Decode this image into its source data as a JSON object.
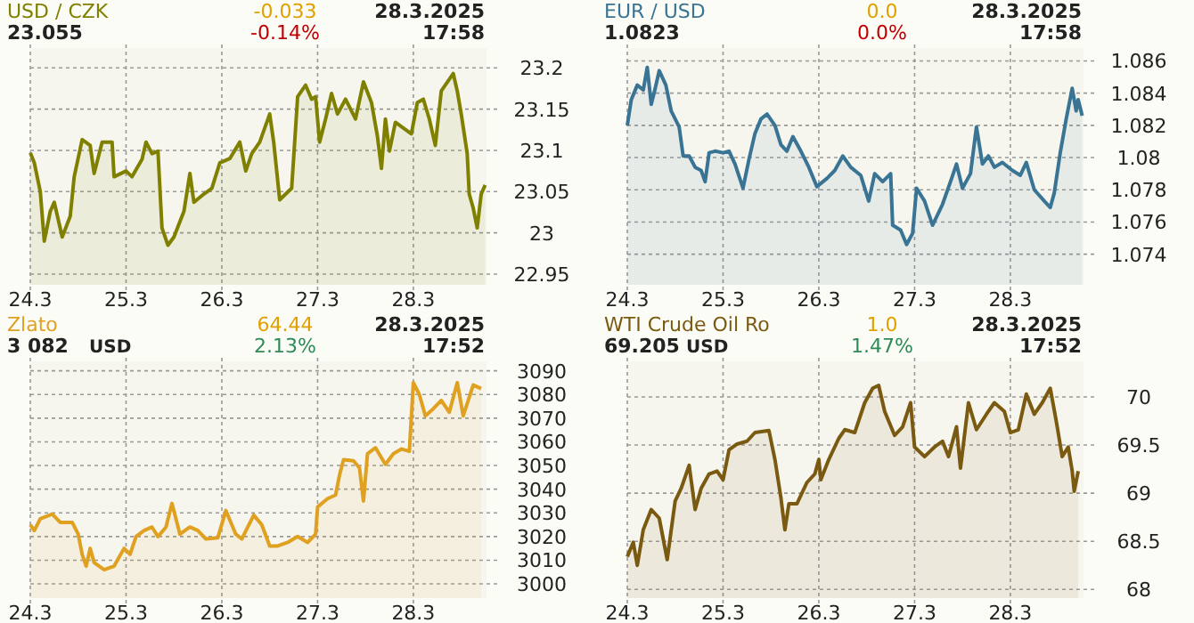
{
  "chart_data": [
    {
      "type": "area",
      "title": "USD / CZK",
      "annotations": [
        "23.055",
        "-0.033",
        "-0.14%",
        "28.3.2025",
        "17:58"
      ],
      "x": [
        "2025-03-24T00:00",
        "2025-03-24T01:00",
        "2025-03-24T02:30",
        "2025-03-24T03:30",
        "2025-03-24T05:00",
        "2025-03-24T06:00",
        "2025-03-24T08:00",
        "2025-03-24T10:00",
        "2025-03-24T11:00",
        "2025-03-24T13:00",
        "2025-03-24T15:00",
        "2025-03-24T16:00",
        "2025-03-24T18:00",
        "2025-03-24T20:30",
        "2025-03-24T21:00",
        "2025-03-25T00:00",
        "2025-03-25T01:30",
        "2025-03-25T04:00",
        "2025-03-25T05:00",
        "2025-03-25T06:30",
        "2025-03-25T08:00",
        "2025-03-25T09:00",
        "2025-03-25T10:30",
        "2025-03-25T12:00",
        "2025-03-25T14:30",
        "2025-03-25T16:00",
        "2025-03-25T17:00",
        "2025-03-25T19:30",
        "2025-03-25T21:30",
        "2025-03-25T23:30",
        "2025-03-26T02:00",
        "2025-03-26T04:30",
        "2025-03-26T06:00",
        "2025-03-26T07:30",
        "2025-03-26T09:30",
        "2025-03-26T12:00",
        "2025-03-26T13:00",
        "2025-03-26T14:30",
        "2025-03-26T16:00",
        "2025-03-26T17:30",
        "2025-03-26T19:00",
        "2025-03-26T21:00",
        "2025-03-26T22:30",
        "2025-03-26T23:30",
        "2025-03-27T00:30",
        "2025-03-27T02:00",
        "2025-03-27T03:30",
        "2025-03-27T05:00",
        "2025-03-27T07:00",
        "2025-03-27T09:30",
        "2025-03-27T11:30",
        "2025-03-27T13:30",
        "2025-03-27T15:00",
        "2025-03-27T16:00",
        "2025-03-27T17:00",
        "2025-03-27T18:00",
        "2025-03-27T19:30",
        "2025-03-27T21:30",
        "2025-03-27T23:30",
        "2025-03-28T01:00",
        "2025-03-28T02:30",
        "2025-03-28T04:00",
        "2025-03-28T05:30",
        "2025-03-28T07:00",
        "2025-03-28T09:00",
        "2025-03-28T10:00",
        "2025-03-28T11:00",
        "2025-03-28T12:00",
        "2025-03-28T13:30",
        "2025-03-28T14:00",
        "2025-03-28T15:00",
        "2025-03-28T16:00",
        "2025-03-28T17:00",
        "2025-03-28T18:00"
      ],
      "series": [
        {
          "color": "#808000",
          "values": [
            23.097,
            23.085,
            23.05,
            22.99,
            23.026,
            23.037,
            22.995,
            23.02,
            23.068,
            23.113,
            23.106,
            23.072,
            23.11,
            23.11,
            23.068,
            23.075,
            23.068,
            23.089,
            23.11,
            23.096,
            23.099,
            23.006,
            22.985,
            22.995,
            23.026,
            23.072,
            23.037,
            23.047,
            23.054,
            23.085,
            23.09,
            23.11,
            23.075,
            23.096,
            23.11,
            23.144,
            23.11,
            23.04,
            23.047,
            23.054,
            23.165,
            23.179,
            23.162,
            23.165,
            23.11,
            23.138,
            23.169,
            23.144,
            23.162,
            23.138,
            23.183,
            23.158,
            23.117,
            23.078,
            23.138,
            23.099,
            23.134,
            23.127,
            23.12,
            23.158,
            23.162,
            23.138,
            23.106,
            23.172,
            23.186,
            23.193,
            23.172,
            23.144,
            23.096,
            23.047,
            23.03,
            23.006,
            23.047,
            23.058
          ]
        }
      ],
      "xlim": [
        "2025-03-24T00:00",
        "2025-03-28T18:20"
      ],
      "xticks": [
        {
          "value": "2025-03-24",
          "label": "24.3"
        },
        {
          "value": "2025-03-25",
          "label": "25.3"
        },
        {
          "value": "2025-03-26",
          "label": "26.3"
        },
        {
          "value": "2025-03-27",
          "label": "27.3"
        },
        {
          "value": "2025-03-28",
          "label": "28.3"
        }
      ],
      "ylim": [
        22.937,
        23.224
      ],
      "yticks": [
        22.95,
        23,
        23.05,
        23.1,
        23.15,
        23.2
      ],
      "grid": true
    },
    {
      "type": "area",
      "title": "EUR / USD",
      "annotations": [
        "1.0823",
        "0.0",
        "0.0%",
        "28.3.2025",
        "17:58"
      ],
      "x": [
        "2025-03-24T00:00",
        "2025-03-24T01:00",
        "2025-03-24T02:30",
        "2025-03-24T04:00",
        "2025-03-24T05:00",
        "2025-03-24T06:00",
        "2025-03-24T07:00",
        "2025-03-24T08:00",
        "2025-03-24T09:40",
        "2025-03-24T11:00",
        "2025-03-24T13:00",
        "2025-03-24T14:00",
        "2025-03-24T15:30",
        "2025-03-24T17:00",
        "2025-03-24T18:30",
        "2025-03-24T19:30",
        "2025-03-24T20:30",
        "2025-03-24T22:00",
        "2025-03-25T00:00",
        "2025-03-25T01:30",
        "2025-03-25T03:00",
        "2025-03-25T05:00",
        "2025-03-25T06:30",
        "2025-03-25T08:00",
        "2025-03-25T09:30",
        "2025-03-25T11:00",
        "2025-03-25T13:00",
        "2025-03-25T14:30",
        "2025-03-25T16:00",
        "2025-03-25T17:30",
        "2025-03-25T19:30",
        "2025-03-25T21:30",
        "2025-03-25T23:30",
        "2025-03-26T02:00",
        "2025-03-26T04:00",
        "2025-03-26T06:00",
        "2025-03-26T08:00",
        "2025-03-26T10:30",
        "2025-03-26T12:30",
        "2025-03-26T14:00",
        "2025-03-26T16:00",
        "2025-03-26T18:00",
        "2025-03-26T18:30",
        "2025-03-26T20:30",
        "2025-03-26T22:00",
        "2025-03-26T23:30",
        "2025-03-27T00:30",
        "2025-03-27T02:30",
        "2025-03-27T04:30",
        "2025-03-27T07:00",
        "2025-03-27T09:00",
        "2025-03-27T10:30",
        "2025-03-27T12:00",
        "2025-03-27T14:00",
        "2025-03-27T15:30",
        "2025-03-27T17:00",
        "2025-03-27T18:30",
        "2025-03-27T20:00",
        "2025-03-27T22:00",
        "2025-03-28T00:30",
        "2025-03-28T02:30",
        "2025-03-28T04:00",
        "2025-03-28T06:00",
        "2025-03-28T08:30",
        "2025-03-28T10:00",
        "2025-03-28T11:00",
        "2025-03-28T12:30",
        "2025-03-28T14:00",
        "2025-03-28T15:30",
        "2025-03-28T16:30",
        "2025-03-28T17:00",
        "2025-03-28T18:00"
      ],
      "series": [
        {
          "color": "#3a7494",
          "values": [
            1.082,
            1.0836,
            1.0845,
            1.0842,
            1.0856,
            1.0833,
            1.0843,
            1.0854,
            1.0845,
            1.0829,
            1.0819,
            1.0801,
            1.0801,
            1.0794,
            1.0792,
            1.0785,
            1.0803,
            1.0804,
            1.0803,
            1.0804,
            1.0796,
            1.0781,
            1.0799,
            1.0815,
            1.0824,
            1.0827,
            1.082,
            1.0808,
            1.0804,
            1.0813,
            1.0804,
            1.0794,
            1.0782,
            1.0787,
            1.0792,
            1.0801,
            1.0794,
            1.0789,
            1.0773,
            1.079,
            1.0785,
            1.079,
            1.0758,
            1.0755,
            1.0746,
            1.0753,
            1.0781,
            1.0773,
            1.0758,
            1.0771,
            1.0785,
            1.0796,
            1.0781,
            1.079,
            1.0819,
            1.0796,
            1.0801,
            1.0794,
            1.0797,
            1.0792,
            1.0789,
            1.0797,
            1.078,
            1.0773,
            1.0769,
            1.0778,
            1.0803,
            1.0824,
            1.0843,
            1.0829,
            1.0836,
            1.0826
          ]
        }
      ],
      "xlim": [
        "2025-03-24T00:00",
        "2025-03-28T18:20"
      ],
      "xticks": [
        {
          "value": "2025-03-24",
          "label": "24.3"
        },
        {
          "value": "2025-03-25",
          "label": "25.3"
        },
        {
          "value": "2025-03-26",
          "label": "26.3"
        },
        {
          "value": "2025-03-27",
          "label": "27.3"
        },
        {
          "value": "2025-03-28",
          "label": "28.3"
        }
      ],
      "ylim": [
        1.0721,
        1.0868
      ],
      "yticks": [
        1.074,
        1.076,
        1.078,
        1.08,
        1.082,
        1.084,
        1.086
      ],
      "grid": true
    },
    {
      "type": "area",
      "title": "Zlato",
      "annotations": [
        "3 082",
        "USD",
        "64.44",
        "2.13%",
        "28.3.2025",
        "17:52"
      ],
      "x": [
        "2025-03-24T00:00",
        "2025-03-24T01:00",
        "2025-03-24T02:30",
        "2025-03-24T05:30",
        "2025-03-24T07:30",
        "2025-03-24T10:30",
        "2025-03-24T12:00",
        "2025-03-24T13:00",
        "2025-03-24T14:00",
        "2025-03-24T15:00",
        "2025-03-24T16:00",
        "2025-03-24T18:30",
        "2025-03-24T21:00",
        "2025-03-24T23:30",
        "2025-03-25T01:00",
        "2025-03-25T02:30",
        "2025-03-25T04:30",
        "2025-03-25T06:30",
        "2025-03-25T08:00",
        "2025-03-25T10:00",
        "2025-03-25T11:30",
        "2025-03-25T13:30",
        "2025-03-25T16:00",
        "2025-03-25T18:00",
        "2025-03-25T20:00",
        "2025-03-25T23:00",
        "2025-03-26T01:00",
        "2025-03-26T03:30",
        "2025-03-26T05:00",
        "2025-03-26T08:00",
        "2025-03-26T10:00",
        "2025-03-26T12:00",
        "2025-03-26T14:00",
        "2025-03-26T16:30",
        "2025-03-26T19:00",
        "2025-03-26T21:30",
        "2025-03-26T23:30",
        "2025-03-27T00:00",
        "2025-03-27T02:30",
        "2025-03-27T04:30",
        "2025-03-27T05:30",
        "2025-03-27T06:30",
        "2025-03-27T09:00",
        "2025-03-27T10:30",
        "2025-03-27T11:30",
        "2025-03-27T12:30",
        "2025-03-27T14:30",
        "2025-03-27T17:00",
        "2025-03-27T19:00",
        "2025-03-27T21:00",
        "2025-03-27T23:00",
        "2025-03-28T00:00",
        "2025-03-28T01:30",
        "2025-03-28T03:00",
        "2025-03-28T05:00",
        "2025-03-28T07:00",
        "2025-03-28T09:00",
        "2025-03-28T11:00",
        "2025-03-28T12:30",
        "2025-03-28T15:00",
        "2025-03-28T17:00"
      ],
      "series": [
        {
          "color": "#e0a020",
          "values": [
            3025,
            3022.5,
            3027.5,
            3029.5,
            3026,
            3026,
            3021,
            3012.5,
            3007.5,
            3015,
            3009,
            3006,
            3007.5,
            3015,
            3012.5,
            3020,
            3022.5,
            3024,
            3020,
            3024,
            3034,
            3021,
            3024,
            3022.5,
            3019,
            3019.5,
            3031,
            3021,
            3019,
            3029,
            3025,
            3016,
            3016,
            3017.5,
            3020,
            3017.5,
            3021,
            3032.5,
            3036,
            3037.5,
            3046,
            3052.5,
            3052,
            3049,
            3035,
            3055,
            3057.5,
            3050.5,
            3055,
            3057,
            3056,
            3085,
            3080,
            3071,
            3074,
            3077.5,
            3072.5,
            3085,
            3071,
            3084,
            3082.5
          ]
        }
      ],
      "xlim": [
        "2025-03-24T00:00",
        "2025-03-28T18:20"
      ],
      "xticks": [
        {
          "value": "2025-03-24",
          "label": "24.3"
        },
        {
          "value": "2025-03-25",
          "label": "25.3"
        },
        {
          "value": "2025-03-26",
          "label": "26.3"
        },
        {
          "value": "2025-03-27",
          "label": "27.3"
        },
        {
          "value": "2025-03-28",
          "label": "28.3"
        }
      ],
      "ylim": [
        2994,
        3094
      ],
      "yticks": [
        3000,
        3010,
        3020,
        3030,
        3040,
        3050,
        3060,
        3070,
        3080,
        3090
      ],
      "grid": true
    },
    {
      "type": "area",
      "title": "WTI Crude Oil Ro",
      "annotations": [
        "69.205",
        "USD",
        "1.0",
        "1.47%",
        "28.3.2025",
        "17:52"
      ],
      "x": [
        "2025-03-24T00:00",
        "2025-03-24T01:30",
        "2025-03-24T02:30",
        "2025-03-24T04:00",
        "2025-03-24T06:00",
        "2025-03-24T08:00",
        "2025-03-24T10:00",
        "2025-03-24T12:00",
        "2025-03-24T13:30",
        "2025-03-24T15:30",
        "2025-03-24T17:00",
        "2025-03-24T18:30",
        "2025-03-24T20:30",
        "2025-03-24T22:30",
        "2025-03-25T00:00",
        "2025-03-25T01:30",
        "2025-03-25T03:30",
        "2025-03-25T06:00",
        "2025-03-25T08:00",
        "2025-03-25T11:30",
        "2025-03-25T13:00",
        "2025-03-25T14:30",
        "2025-03-25T15:30",
        "2025-03-25T16:30",
        "2025-03-25T18:30",
        "2025-03-25T21:00",
        "2025-03-25T23:00",
        "2025-03-26T00:00",
        "2025-03-26T00:30",
        "2025-03-26T02:30",
        "2025-03-26T05:00",
        "2025-03-26T06:30",
        "2025-03-26T09:00",
        "2025-03-26T11:30",
        "2025-03-26T13:30",
        "2025-03-26T15:00",
        "2025-03-26T16:30",
        "2025-03-26T19:00",
        "2025-03-26T21:00",
        "2025-03-26T23:00",
        "2025-03-27T00:00",
        "2025-03-27T02:30",
        "2025-03-27T05:00",
        "2025-03-27T07:00",
        "2025-03-27T08:30",
        "2025-03-27T10:30",
        "2025-03-27T11:30",
        "2025-03-27T13:30",
        "2025-03-27T15:30",
        "2025-03-27T18:00",
        "2025-03-27T20:00",
        "2025-03-27T22:30",
        "2025-03-28T00:00",
        "2025-03-28T02:00",
        "2025-03-28T04:00",
        "2025-03-28T06:00",
        "2025-03-28T08:00",
        "2025-03-28T10:00",
        "2025-03-28T11:30",
        "2025-03-28T13:00",
        "2025-03-28T14:30",
        "2025-03-28T15:30",
        "2025-03-28T16:00",
        "2025-03-28T17:00"
      ],
      "series": [
        {
          "color": "#7a5a10",
          "values": [
            68.34,
            68.49,
            68.25,
            68.62,
            68.83,
            68.74,
            68.31,
            68.92,
            69.05,
            69.29,
            68.83,
            69.05,
            69.2,
            69.23,
            69.14,
            69.45,
            69.51,
            69.54,
            69.63,
            69.65,
            69.35,
            68.95,
            68.62,
            68.89,
            68.89,
            69.11,
            69.2,
            69.35,
            69.14,
            69.35,
            69.57,
            69.66,
            69.63,
            69.94,
            70.09,
            70.12,
            69.85,
            69.6,
            69.69,
            69.94,
            69.48,
            69.38,
            69.48,
            69.54,
            69.38,
            69.69,
            69.26,
            69.94,
            69.66,
            69.82,
            69.94,
            69.85,
            69.63,
            69.66,
            70.03,
            69.82,
            69.94,
            70.09,
            69.75,
            69.38,
            69.48,
            69.23,
            69.02,
            69.23
          ]
        }
      ],
      "xlim": [
        "2025-03-24T00:00",
        "2025-03-28T18:20"
      ],
      "xticks": [
        {
          "value": "2025-03-24",
          "label": "24.3"
        },
        {
          "value": "2025-03-25",
          "label": "25.3"
        },
        {
          "value": "2025-03-26",
          "label": "26.3"
        },
        {
          "value": "2025-03-27",
          "label": "27.3"
        },
        {
          "value": "2025-03-28",
          "label": "28.3"
        }
      ],
      "ylim": [
        67.91,
        70.37
      ],
      "yticks": [
        68,
        68.5,
        69,
        69.5,
        70
      ],
      "grid": true
    }
  ]
}
